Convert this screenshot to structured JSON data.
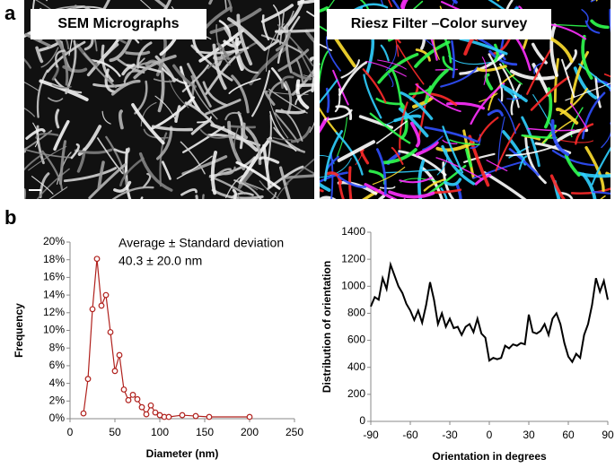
{
  "panels": {
    "a": "a",
    "b": "b"
  },
  "images": [
    {
      "caption": "SEM Micrographs"
    },
    {
      "caption": "Riesz Filter –Color survey"
    }
  ],
  "chart_data": [
    {
      "type": "line",
      "marker": true,
      "color": "#b0201c",
      "annotations": [
        "Average ± Standard deviation",
        "40.3 ± 20.0 nm"
      ],
      "xlabel": "Diameter (nm)",
      "ylabel": "Frequency",
      "x": [
        15,
        20,
        25,
        30,
        35,
        40,
        45,
        50,
        55,
        60,
        65,
        70,
        75,
        80,
        85,
        90,
        95,
        100,
        105,
        110,
        125,
        140,
        155,
        200
      ],
      "values": [
        0.6,
        4.5,
        12.4,
        18.1,
        12.8,
        14,
        9.8,
        5.4,
        7.2,
        3.3,
        2.1,
        2.7,
        2.2,
        1.3,
        0.5,
        1.5,
        0.7,
        0.4,
        0.2,
        0.2,
        0.4,
        0.3,
        0.2,
        0.2
      ],
      "xlim": [
        0,
        250
      ],
      "xticks": [
        0,
        50,
        100,
        150,
        200,
        250
      ],
      "ylim": [
        0,
        20
      ],
      "yticks": [
        {
          "value": 0,
          "label": "0%"
        },
        {
          "value": 2,
          "label": "2%"
        },
        {
          "value": 4,
          "label": "4%"
        },
        {
          "value": 6,
          "label": "6%"
        },
        {
          "value": 8,
          "label": "8%"
        },
        {
          "value": 10,
          "label": "10%"
        },
        {
          "value": 12,
          "label": "12%"
        },
        {
          "value": 14,
          "label": "14%"
        },
        {
          "value": 16,
          "label": "16%"
        },
        {
          "value": 18,
          "label": "18%"
        },
        {
          "value": 20,
          "label": "20%"
        }
      ]
    },
    {
      "type": "line",
      "marker": false,
      "color": "#000000",
      "xlabel": "Orientation in degrees",
      "ylabel": "Distribution of orientation",
      "x": [
        -90,
        -87,
        -84,
        -81,
        -78,
        -75,
        -72,
        -69,
        -66,
        -63,
        -60,
        -57,
        -54,
        -51,
        -48,
        -45,
        -42,
        -39,
        -36,
        -33,
        -30,
        -27,
        -24,
        -21,
        -18,
        -15,
        -12,
        -9,
        -6,
        -3,
        0,
        3,
        6,
        9,
        12,
        15,
        18,
        21,
        24,
        27,
        30,
        33,
        36,
        39,
        42,
        45,
        48,
        51,
        54,
        57,
        60,
        63,
        66,
        69,
        72,
        75,
        78,
        81,
        84,
        87,
        90
      ],
      "values": [
        850,
        920,
        900,
        1060,
        980,
        1160,
        1080,
        1000,
        950,
        870,
        820,
        750,
        820,
        730,
        860,
        1030,
        900,
        720,
        800,
        700,
        760,
        690,
        700,
        640,
        700,
        720,
        660,
        760,
        650,
        620,
        450,
        470,
        460,
        470,
        560,
        540,
        570,
        560,
        580,
        570,
        790,
        660,
        650,
        670,
        720,
        640,
        760,
        800,
        720,
        580,
        480,
        440,
        500,
        470,
        640,
        720,
        860,
        1060,
        960,
        1040,
        900
      ],
      "xlim": [
        -90,
        90
      ],
      "xticks": [
        -90,
        -60,
        -30,
        0,
        30,
        60,
        90
      ],
      "ylim": [
        0,
        1400
      ],
      "yticks": [
        0,
        200,
        400,
        600,
        800,
        1000,
        1200,
        1400
      ]
    }
  ]
}
